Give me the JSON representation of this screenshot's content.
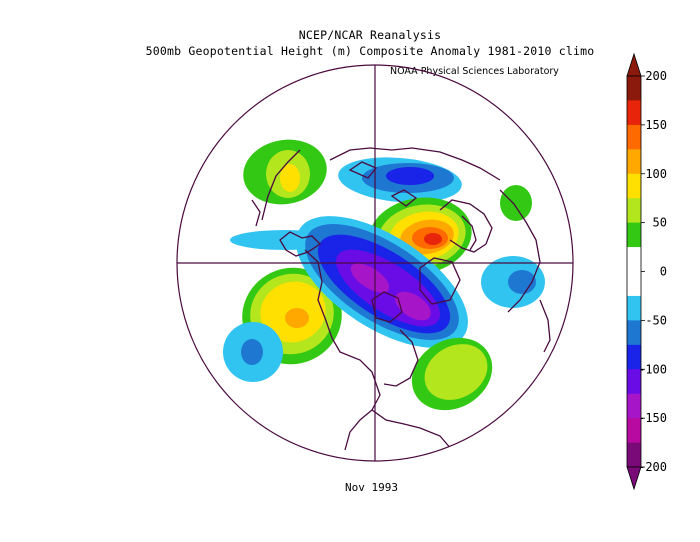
{
  "header": {
    "line1": "NCEP/NCAR Reanalysis",
    "line2": "500mb Geopotential Height (m) Composite Anomaly 1981-2010 climo",
    "credit": "NOAA Physical Sciences Laboratory"
  },
  "footer": {
    "period": "Nov 1993"
  },
  "colorbar": {
    "ticks": [
      "200",
      "150",
      "100",
      "50",
      "0",
      "-50",
      "-100",
      "-150",
      "-200"
    ],
    "colors": [
      "#8c1a0c",
      "#e8240a",
      "#ff6a00",
      "#ffa800",
      "#ffe000",
      "#b4e61e",
      "#33c814",
      "#ffffff",
      "#ffffff",
      "#32c4f0",
      "#1e78d2",
      "#1a24e8",
      "#6a0ce6",
      "#a616c8",
      "#b80aa0",
      "#7a0a78"
    ]
  },
  "map": {
    "projection": "north-polar-stereographic",
    "anomaly_colors": {
      "pos_weak": "#33c814",
      "pos_light": "#b4e61e",
      "pos_mid": "#ffe000",
      "pos_strong": "#ffa800",
      "pos_xstrong": "#ff6a00",
      "pos_max": "#e8240a",
      "pos_peak": "#8c1a0c",
      "neg_weak": "#32c4f0",
      "neg_mid": "#1e78d2",
      "neg_strong": "#1a24e8",
      "neg_xstrong": "#6a0ce6",
      "neg_max": "#a616c8",
      "neg_peak": "#b80aa0"
    }
  }
}
